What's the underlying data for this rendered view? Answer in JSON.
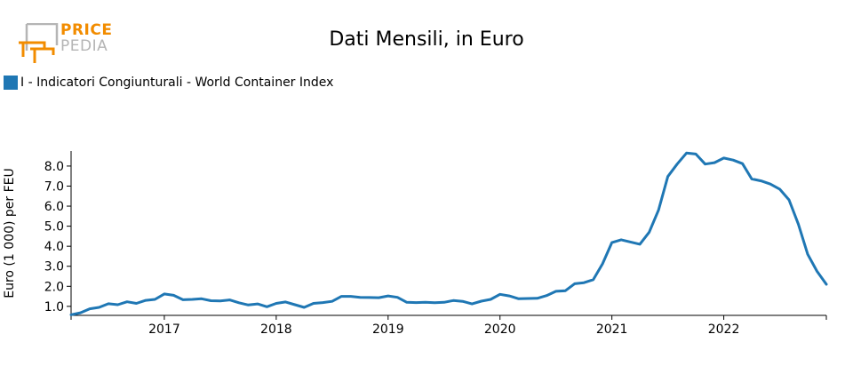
{
  "logo": {
    "line1": "PRICE",
    "line2": "PEDIA"
  },
  "colors": {
    "series": "#1f77b4",
    "logo_orange": "#f28c00",
    "logo_gray": "#b5b5b5"
  },
  "chart_data": {
    "type": "line",
    "title": "Dati Mensili, in Euro",
    "ylabel": "Euro (1 000) per FEU",
    "xlabel": "",
    "ylim": [
      0.55,
      8.75
    ],
    "xlim": [
      "2016-03",
      "2022-12"
    ],
    "yticks": [
      "1.0",
      "2.0",
      "3.0",
      "4.0",
      "5.0",
      "6.0",
      "7.0",
      "8.0"
    ],
    "xticks": [
      "2017",
      "2018",
      "2019",
      "2020",
      "2021",
      "2022"
    ],
    "grid": false,
    "legend_position": "top-left",
    "series": [
      {
        "name": "I - Indicatori Congiunturali - World Container Index",
        "color": "#1f77b4",
        "x": [
          "2016-03",
          "2016-04",
          "2016-05",
          "2016-06",
          "2016-07",
          "2016-08",
          "2016-09",
          "2016-10",
          "2016-11",
          "2016-12",
          "2017-01",
          "2017-02",
          "2017-03",
          "2017-04",
          "2017-05",
          "2017-06",
          "2017-07",
          "2017-08",
          "2017-09",
          "2017-10",
          "2017-11",
          "2017-12",
          "2018-01",
          "2018-02",
          "2018-03",
          "2018-04",
          "2018-05",
          "2018-06",
          "2018-07",
          "2018-08",
          "2018-09",
          "2018-10",
          "2018-11",
          "2018-12",
          "2019-01",
          "2019-02",
          "2019-03",
          "2019-04",
          "2019-05",
          "2019-06",
          "2019-07",
          "2019-08",
          "2019-09",
          "2019-10",
          "2019-11",
          "2019-12",
          "2020-01",
          "2020-02",
          "2020-03",
          "2020-04",
          "2020-05",
          "2020-06",
          "2020-07",
          "2020-08",
          "2020-09",
          "2020-10",
          "2020-11",
          "2020-12",
          "2021-01",
          "2021-02",
          "2021-03",
          "2021-04",
          "2021-05",
          "2021-06",
          "2021-07",
          "2021-08",
          "2021-09",
          "2021-10",
          "2021-11",
          "2021-12",
          "2022-01",
          "2022-02",
          "2022-03",
          "2022-04",
          "2022-05",
          "2022-06",
          "2022-07",
          "2022-08",
          "2022-09",
          "2022-10",
          "2022-11",
          "2022-12"
        ],
        "values": [
          0.58,
          0.68,
          0.88,
          0.95,
          1.13,
          1.08,
          1.23,
          1.15,
          1.3,
          1.35,
          1.62,
          1.55,
          1.33,
          1.35,
          1.38,
          1.28,
          1.27,
          1.32,
          1.18,
          1.07,
          1.12,
          0.98,
          1.15,
          1.22,
          1.08,
          0.95,
          1.15,
          1.19,
          1.25,
          1.5,
          1.5,
          1.45,
          1.44,
          1.43,
          1.52,
          1.45,
          1.2,
          1.19,
          1.2,
          1.18,
          1.2,
          1.29,
          1.25,
          1.12,
          1.26,
          1.35,
          1.6,
          1.52,
          1.38,
          1.39,
          1.4,
          1.54,
          1.75,
          1.78,
          2.13,
          2.18,
          2.33,
          3.12,
          4.18,
          4.32,
          4.21,
          4.1,
          4.7,
          5.8,
          7.48,
          8.1,
          8.65,
          8.6,
          8.1,
          8.17,
          8.4,
          8.3,
          8.12,
          7.36,
          7.26,
          7.1,
          6.85,
          6.31,
          5.1,
          3.6,
          2.75,
          2.1
        ]
      }
    ]
  }
}
